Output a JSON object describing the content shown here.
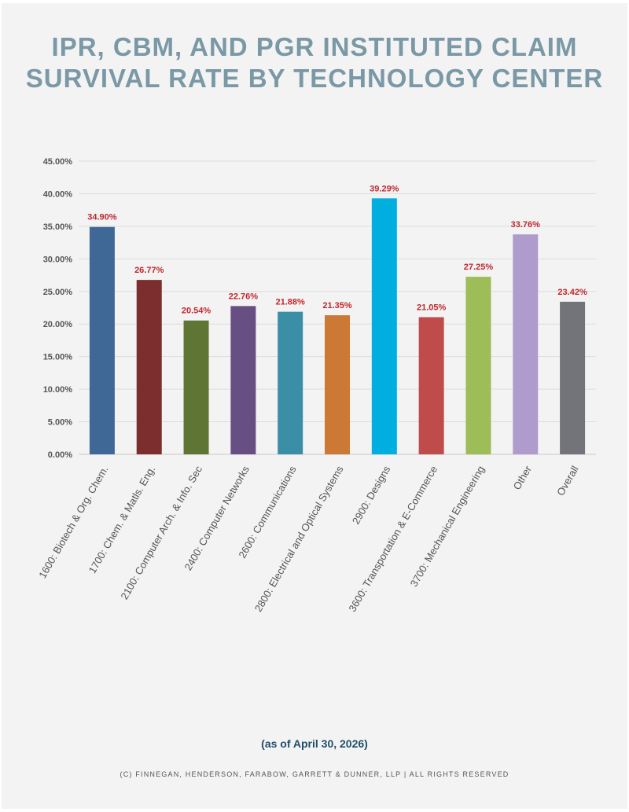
{
  "chart_data": {
    "type": "bar",
    "title_line1": "IPR, CBM, AND PGR INSTITUTED CLAIM",
    "title_line2": "SURVIVAL RATE BY TECHNOLOGY CENTER",
    "categories": [
      "1600: Biotech & Org. Chem.",
      "1700: Chem. & Matls. Eng.",
      "2100: Computer Arch. & Info. Sec",
      "2400: Computer Networks",
      "2600: Communications",
      "2800: Electrical and Optical Systems",
      "2900: Designs",
      "3600: Transportation & E-Commerce",
      "3700: Mechanical Engineering",
      "Other",
      "Overall"
    ],
    "values": [
      34.9,
      26.77,
      20.54,
      22.76,
      21.88,
      21.35,
      39.29,
      21.05,
      27.25,
      33.76,
      23.42
    ],
    "value_labels": [
      "34.90%",
      "26.77%",
      "20.54%",
      "22.76%",
      "21.88%",
      "21.35%",
      "39.29%",
      "21.05%",
      "27.25%",
      "33.76%",
      "23.42%"
    ],
    "colors": [
      "#3f6897",
      "#7c2e2e",
      "#5e7534",
      "#684f83",
      "#3a8ea6",
      "#cc7935",
      "#00afe0",
      "#c04b4b",
      "#9cbd58",
      "#b09ccc",
      "#727479"
    ],
    "ylim": [
      0,
      45
    ],
    "yticks": [
      "0.00%",
      "5.00%",
      "10.00%",
      "15.00%",
      "20.00%",
      "25.00%",
      "30.00%",
      "35.00%",
      "40.00%",
      "45.00%"
    ],
    "grid": true,
    "label_color": "#c0272d"
  },
  "footer": {
    "note": "(as of April 30, 2026)",
    "copyright": "(C) FINNEGAN, HENDERSON, FARABOW, GARRETT & DUNNER, LLP | ALL RIGHTS RESERVED"
  }
}
